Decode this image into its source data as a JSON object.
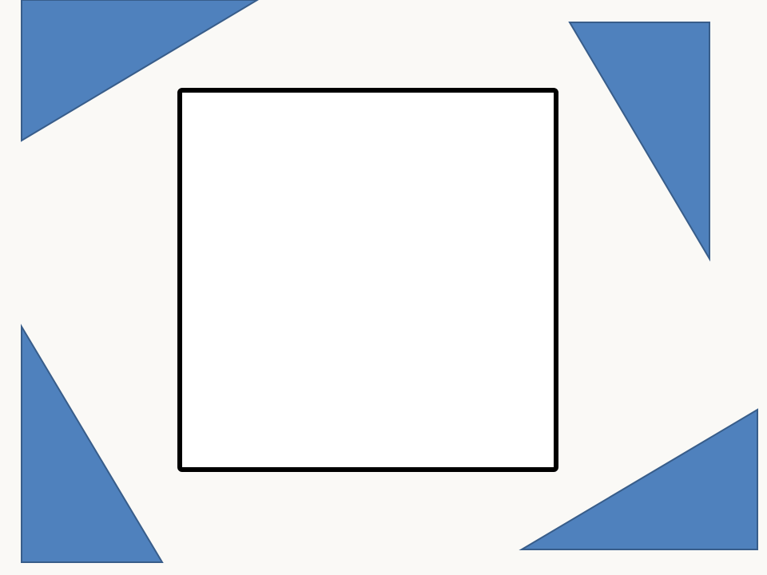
{
  "colors": {
    "background": "#faf9f6",
    "triangle_fill": "#4f81bd",
    "triangle_stroke": "#385d8a",
    "square_fill": "#ffffff",
    "square_stroke": "#000000"
  },
  "shapes": {
    "corner_triangles": [
      {
        "name": "triangle-top-left",
        "icon": "right-triangle"
      },
      {
        "name": "triangle-top-right",
        "icon": "right-triangle"
      },
      {
        "name": "triangle-bottom-left",
        "icon": "right-triangle"
      },
      {
        "name": "triangle-bottom-right",
        "icon": "right-triangle"
      }
    ],
    "center_square": {
      "name": "center-square",
      "icon": "square-outline"
    }
  }
}
